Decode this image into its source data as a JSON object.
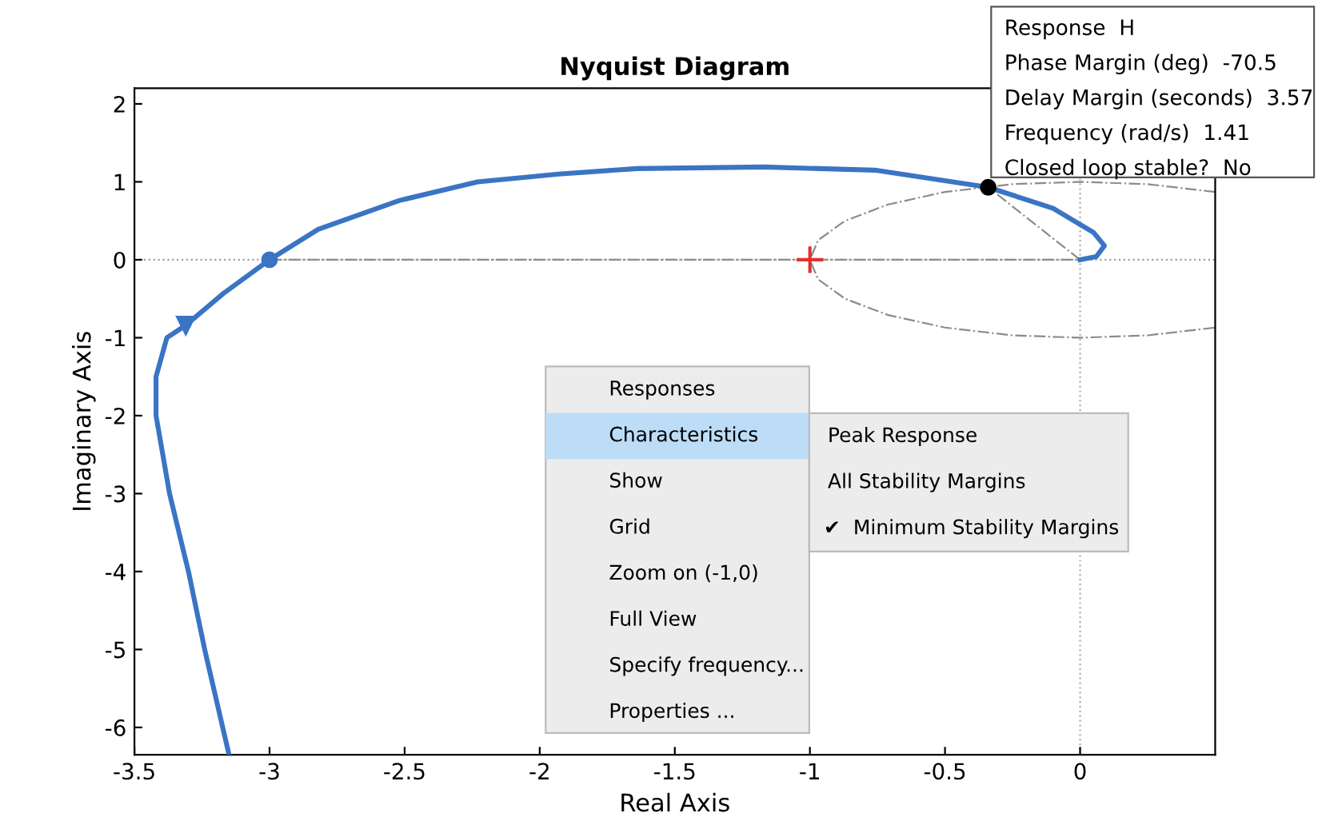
{
  "chart_data": {
    "type": "line",
    "title": "Nyquist Diagram",
    "xlabel": "Real Axis",
    "ylabel": "Imaginary Axis",
    "xlim": [
      -3.5,
      0.5
    ],
    "ylim": [
      -6.35,
      2.2
    ],
    "xticks": [
      -3.5,
      -3,
      -2.5,
      -2,
      -1.5,
      -1,
      -0.5,
      0
    ],
    "yticks": [
      -6,
      -5,
      -4,
      -3,
      -2,
      -1,
      0,
      1,
      2
    ],
    "grid": false,
    "legend": false,
    "series": [
      {
        "color": "#3a74c4",
        "line_style": "solid",
        "marker": "none",
        "x": [
          -3.15,
          -3.2,
          -3.24,
          -3.3,
          -3.37,
          -3.42,
          -3.42,
          -3.38,
          -3.31,
          -3.17,
          -3.0,
          -2.82,
          -2.52,
          -2.23,
          -1.93,
          -1.64,
          -1.17,
          -0.76,
          -0.34,
          -0.1,
          0.05,
          0.09,
          0.06,
          0.0
        ],
        "values": [
          -6.35,
          -5.6,
          -5.0,
          -4.0,
          -3.0,
          -2.0,
          -1.5,
          -1.0,
          -0.84,
          -0.43,
          0.0,
          0.39,
          0.76,
          1.0,
          1.1,
          1.17,
          1.19,
          1.15,
          0.93,
          0.66,
          0.35,
          0.18,
          0.04,
          0.0
        ]
      },
      {
        "type": "line",
        "color": "#8c8c8c",
        "line_style": "dashed",
        "marker": "none",
        "x": [
          0.5,
          0.25,
          0,
          -0.25,
          -0.5,
          -0.71,
          -0.87,
          -0.97,
          -1,
          -0.97,
          -0.87,
          -0.71,
          -0.5,
          -0.25,
          0,
          0.25,
          0.5
        ],
        "values": [
          0.87,
          0.97,
          1,
          0.97,
          0.87,
          0.71,
          0.5,
          0.25,
          0,
          -0.25,
          -0.5,
          -0.71,
          -0.87,
          -0.97,
          -1,
          -0.97,
          -0.87
        ]
      },
      {
        "type": "line",
        "color": "#8c8c8c",
        "line_style": "dashed",
        "marker": "none",
        "x": [
          -3,
          0
        ],
        "values": [
          0,
          0
        ]
      },
      {
        "type": "line",
        "color": "#8c8c8c",
        "line_style": "dashed",
        "marker": "none",
        "x": [
          0,
          -0.34
        ],
        "values": [
          0,
          0.93
        ]
      },
      {
        "type": "scatter",
        "color": "#000000",
        "marker": "circle",
        "x": [
          -0.34
        ],
        "values": [
          0.93
        ]
      },
      {
        "type": "scatter",
        "color": "#3a74c4",
        "marker": "circle",
        "x": [
          -3.0
        ],
        "values": [
          0.0
        ]
      },
      {
        "type": "scatter",
        "color": "#3a74c4",
        "marker": "triangle",
        "x": [
          -3.31
        ],
        "values": [
          -0.84
        ]
      },
      {
        "type": "scatter",
        "color": "#e0312f",
        "marker": "cross",
        "x": [
          -1
        ],
        "values": [
          0
        ]
      }
    ],
    "ref_lines": [
      {
        "axis": "x",
        "value": 0,
        "color": "#b0b0b0",
        "line_style": "dotted"
      },
      {
        "axis": "y",
        "value": 0,
        "color": "#a0a0a0",
        "line_style": "dotted"
      }
    ],
    "annotations": [
      "Response  H",
      "Phase Margin (deg)  -70.5",
      "Delay Margin (seconds)  3.57",
      "Frequency (rad/s)  1.41",
      "Closed loop stable?  No",
      "Responses",
      "Characteristics",
      "Show",
      "Grid",
      "Zoom on (-1,0)",
      "Full View",
      "Specify frequency...",
      "Properties ...",
      "Peak Response",
      "All Stability Margins",
      "✔  Minimum Stability Margins"
    ]
  }
}
